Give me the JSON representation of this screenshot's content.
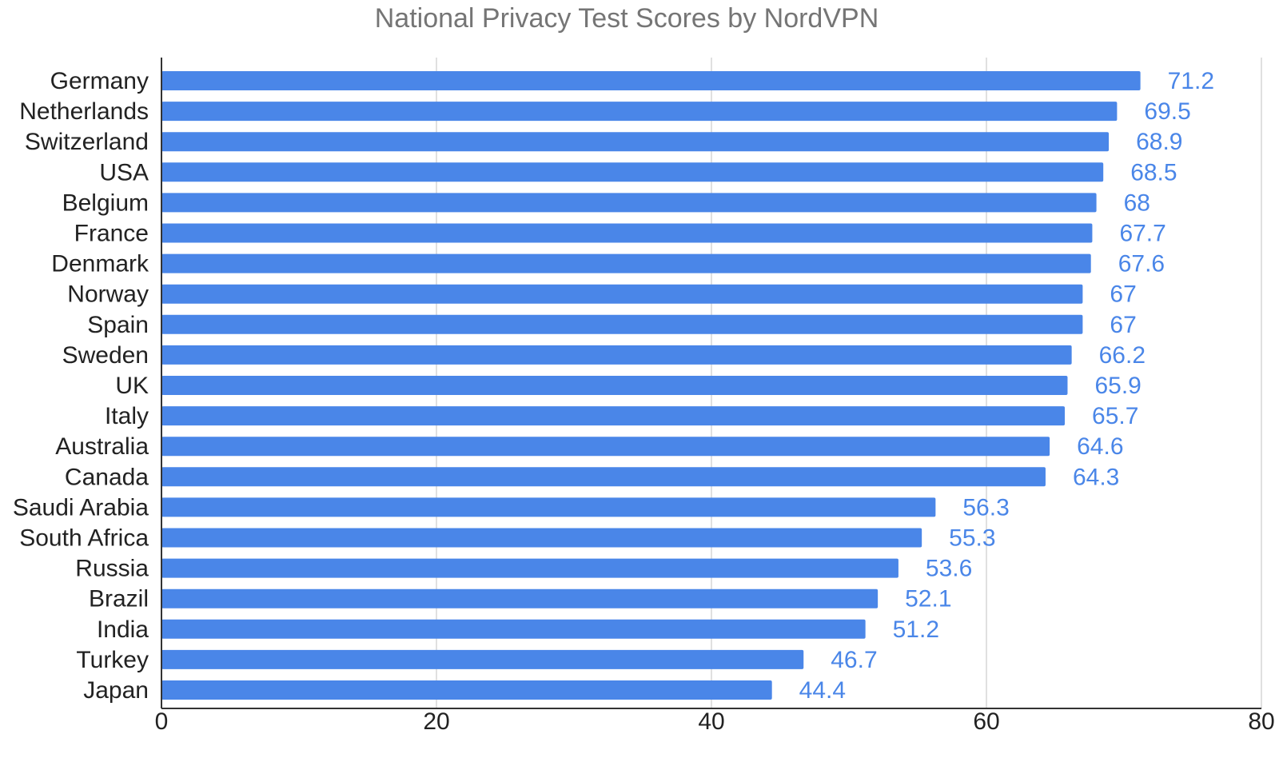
{
  "chart_data": {
    "type": "bar",
    "orientation": "horizontal",
    "title": "National Privacy Test Scores by NordVPN",
    "xlabel": "",
    "ylabel": "",
    "categories": [
      "Germany",
      "Netherlands",
      "Switzerland",
      "USA",
      "Belgium",
      "France",
      "Denmark",
      "Norway",
      "Spain",
      "Sweden",
      "UK",
      "Italy",
      "Australia",
      "Canada",
      "Saudi Arabia",
      "South Africa",
      "Russia",
      "Brazil",
      "India",
      "Turkey",
      "Japan"
    ],
    "values": [
      71.2,
      69.5,
      68.9,
      68.5,
      68,
      67.7,
      67.6,
      67,
      67,
      66.2,
      65.9,
      65.7,
      64.6,
      64.3,
      56.3,
      55.3,
      53.6,
      52.1,
      51.2,
      46.7,
      44.4
    ],
    "value_labels": [
      "71.2",
      "69.5",
      "68.9",
      "68.5",
      "68",
      "67.7",
      "67.6",
      "67",
      "67",
      "66.2",
      "65.9",
      "65.7",
      "64.6",
      "64.3",
      "56.3",
      "55.3",
      "53.6",
      "52.1",
      "51.2",
      "46.7",
      "44.4"
    ],
    "xlim": [
      0,
      80
    ],
    "ticks": [
      0,
      20,
      40,
      60,
      80
    ],
    "tick_labels": [
      "0",
      "20",
      "40",
      "60",
      "80"
    ],
    "grid": true,
    "legend": "none",
    "bar_color": "#4a86e8",
    "label_color": "#4a86e8"
  }
}
